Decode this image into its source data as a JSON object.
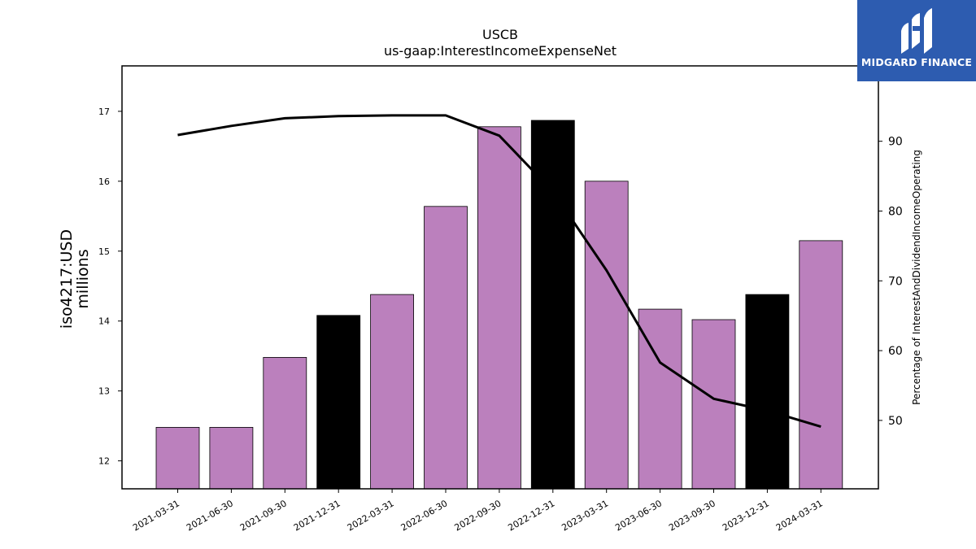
{
  "logo": {
    "text": "MIDGARD FINANCE",
    "background": "#2d5cb0"
  },
  "chart_data": {
    "type": "bar",
    "title": "USCB",
    "subtitle": "us-gaap:InterestIncomeExpenseNet",
    "ylabel": "iso4217:USD",
    "ylabel_sub": "millions",
    "y2label": "Percentage of InterestAndDividendIncomeOperating",
    "categories": [
      "2021-03-31",
      "2021-06-30",
      "2021-09-30",
      "2021-12-31",
      "2022-03-31",
      "2022-06-30",
      "2022-09-30",
      "2022-12-31",
      "2023-03-31",
      "2023-06-30",
      "2023-09-30",
      "2023-12-31",
      "2024-03-31"
    ],
    "series": [
      {
        "axis": "left",
        "kind": "bar",
        "values": [
          12.48,
          12.48,
          13.48,
          14.08,
          14.38,
          15.64,
          16.78,
          16.87,
          16.0,
          14.17,
          14.02,
          14.38,
          15.15
        ],
        "colors": [
          "#bb80bd",
          "#bb80bd",
          "#bb80bd",
          "#000000",
          "#bb80bd",
          "#bb80bd",
          "#bb80bd",
          "#000000",
          "#bb80bd",
          "#bb80bd",
          "#bb80bd",
          "#000000",
          "#bb80bd"
        ]
      },
      {
        "axis": "right",
        "kind": "line",
        "color": "#000000",
        "values": [
          90.9,
          92.2,
          93.3,
          93.6,
          93.7,
          93.7,
          90.8,
          82.8,
          71.5,
          58.3,
          53.1,
          51.4,
          49.1
        ]
      }
    ],
    "ylim": [
      11.6,
      17.65
    ],
    "yticks": [
      12,
      13,
      14,
      15,
      16,
      17
    ],
    "y2lim": [
      40.2,
      100.8
    ],
    "y2ticks": [
      50,
      60,
      70,
      80,
      90
    ],
    "grid": false,
    "legend": "none"
  }
}
